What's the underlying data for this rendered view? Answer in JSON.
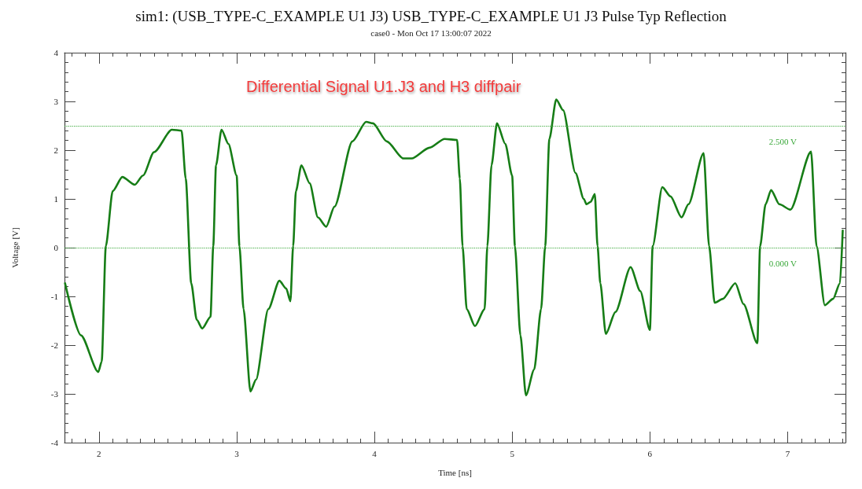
{
  "chart_data": {
    "type": "line",
    "title": "sim1: (USB_TYPE-C_EXAMPLE U1 J3) USB_TYPE-C_EXAMPLE U1 J3 Pulse Typ Reflection",
    "subtitle": "case0 - Mon Oct 17 13:00:07 2022",
    "xlabel": "Time [ns]",
    "ylabel": "Voltage [V]",
    "annotations": [
      "Differential Signal U1.J3 and H3 diffpair"
    ],
    "series": [
      {
        "color": "#167d16",
        "x": [
          1.754,
          1.87,
          1.995,
          2.02,
          2.05,
          2.1,
          2.17,
          2.26,
          2.32,
          2.4,
          2.53,
          2.6,
          2.63,
          2.67,
          2.71,
          2.75,
          2.81,
          2.83,
          2.85,
          2.89,
          2.94,
          3.0,
          3.02,
          3.05,
          3.1,
          3.14,
          3.23,
          3.31,
          3.36,
          3.39,
          3.41,
          3.43,
          3.47,
          3.53,
          3.59,
          3.65,
          3.71,
          3.84,
          3.94,
          3.99,
          4.09,
          4.21,
          4.27,
          4.4,
          4.51,
          4.6,
          4.62,
          4.64,
          4.67,
          4.73,
          4.8,
          4.82,
          4.85,
          4.89,
          4.95,
          5.0,
          5.02,
          5.06,
          5.1,
          5.16,
          5.21,
          5.24,
          5.27,
          5.32,
          5.37,
          5.46,
          5.52,
          5.54,
          5.57,
          5.6,
          5.62,
          5.64,
          5.68,
          5.75,
          5.86,
          5.93,
          6.0,
          6.02,
          6.09,
          6.15,
          6.23,
          6.28,
          6.39,
          6.43,
          6.47,
          6.53,
          6.62,
          6.68,
          6.78,
          6.8,
          6.84,
          6.88,
          6.94,
          7.02,
          7.17,
          7.21,
          7.27,
          7.33,
          7.38,
          7.4
        ],
        "values": [
          -0.73,
          -1.8,
          -2.55,
          -2.34,
          0.03,
          1.16,
          1.45,
          1.29,
          1.48,
          1.96,
          2.42,
          2.4,
          1.42,
          -0.73,
          -1.48,
          -1.66,
          -1.42,
          0.03,
          1.69,
          2.42,
          2.13,
          1.48,
          0.03,
          -1.26,
          -2.95,
          -2.71,
          -1.26,
          -0.68,
          -0.84,
          -1.1,
          0.03,
          1.16,
          1.69,
          1.32,
          0.62,
          0.43,
          0.84,
          2.18,
          2.58,
          2.55,
          2.18,
          1.83,
          1.83,
          2.05,
          2.23,
          2.21,
          1.42,
          0.03,
          -1.26,
          -1.61,
          -1.26,
          0.03,
          1.69,
          2.55,
          2.13,
          1.48,
          0.03,
          -1.8,
          -3.03,
          -2.5,
          -1.26,
          0.03,
          2.23,
          3.04,
          2.82,
          1.53,
          1.0,
          0.89,
          0.94,
          1.1,
          0.03,
          -0.73,
          -1.77,
          -1.32,
          -0.4,
          -0.89,
          -1.69,
          0.03,
          1.24,
          1.05,
          0.62,
          0.89,
          1.94,
          0.03,
          -1.13,
          -1.05,
          -0.73,
          -1.16,
          -1.96,
          0.03,
          0.89,
          1.18,
          0.89,
          0.78,
          1.97,
          0.03,
          -1.18,
          -1.05,
          -0.73,
          0.35
        ]
      }
    ],
    "xlim": [
      1.75,
      7.42
    ],
    "xticks": [
      2,
      3,
      4,
      5,
      6,
      7
    ],
    "ylim": [
      -4,
      4
    ],
    "yticks": [
      -4,
      -3,
      -2,
      -1,
      0,
      1,
      2,
      3,
      4
    ],
    "ref_lines": [
      {
        "axis": "y",
        "value": 2.5,
        "label": "2.500 V",
        "color": "#3aa83a",
        "line_style": "dotted"
      },
      {
        "axis": "y",
        "value": 0,
        "label": "0.000 V",
        "color": "#3aa83a",
        "line_style": "dotted"
      }
    ],
    "marker": "none",
    "line_style": "solid"
  }
}
